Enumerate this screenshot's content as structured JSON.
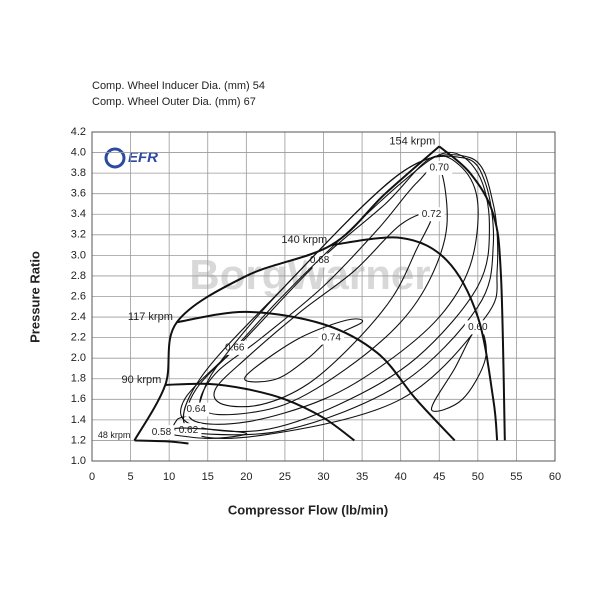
{
  "chart_data": {
    "type": "compressor-map",
    "notes": [
      "Comp. Wheel Inducer Dia. (mm) 54",
      "Comp. Wheel Outer Dia. (mm) 67"
    ],
    "logo": "EFR",
    "watermark": "BorgWarner",
    "x_label": "Compressor Flow (lb/min)",
    "y_label": "Pressure Ratio",
    "xlim": [
      0,
      60
    ],
    "xticks": [
      0,
      5,
      10,
      15,
      20,
      25,
      30,
      35,
      40,
      45,
      50,
      55,
      60
    ],
    "ylim": [
      1.0,
      4.2
    ],
    "yticks": [
      {
        "value": 1.0,
        "label": "1.0"
      },
      1.2,
      1.4,
      1.6,
      1.8,
      {
        "value": 2.0,
        "label": "2.0"
      },
      2.2,
      2.4,
      2.6,
      2.8,
      {
        "value": 3.0,
        "label": "3.0"
      },
      3.2,
      3.4,
      3.6,
      3.8,
      {
        "value": 4.0,
        "label": "4.0"
      },
      4.2
    ],
    "grid": true,
    "color": "#111111",
    "surge_line": {
      "x": [
        5.5,
        9.5,
        11,
        20,
        31,
        38,
        45
      ],
      "y": [
        1.2,
        1.74,
        2.35,
        2.8,
        3.1,
        3.6,
        4.06
      ]
    },
    "speed_lines": [
      {
        "name": "48 krpm",
        "x": [
          5.5,
          10,
          12.5
        ],
        "y": [
          1.2,
          1.19,
          1.17
        ]
      },
      {
        "name": "90 krpm",
        "x": [
          9.5,
          15,
          20,
          25,
          30,
          34
        ],
        "y": [
          1.74,
          1.75,
          1.7,
          1.6,
          1.42,
          1.2
        ]
      },
      {
        "name": "117 krpm",
        "x": [
          11,
          20,
          30,
          37,
          42,
          47
        ],
        "y": [
          2.35,
          2.45,
          2.33,
          2.05,
          1.6,
          1.2
        ]
      },
      {
        "name": "140 krpm",
        "x": [
          31,
          40,
          46,
          50,
          52,
          52.5
        ],
        "y": [
          3.1,
          3.17,
          2.95,
          2.4,
          1.6,
          1.2
        ]
      },
      {
        "name": "154 krpm",
        "x": [
          45,
          49,
          52,
          53,
          53.5
        ],
        "y": [
          4.06,
          3.8,
          3.4,
          2.8,
          1.2
        ]
      }
    ],
    "contours": [
      {
        "name": "0.74",
        "x": [
          31,
          35,
          33,
          27,
          21,
          20,
          24,
          28
        ],
        "y": [
          2.2,
          2.35,
          2.37,
          2.2,
          1.9,
          1.78,
          1.8,
          2.0
        ]
      },
      {
        "name": "0.72",
        "x": [
          44,
          42,
          39,
          34,
          28,
          22,
          17,
          16,
          20,
          27,
          34,
          40
        ],
        "y": [
          3.4,
          3.05,
          2.6,
          2.15,
          1.75,
          1.55,
          1.55,
          1.7,
          2.0,
          2.45,
          2.85,
          3.3
        ]
      },
      {
        "name": "0.70",
        "x": [
          45,
          46,
          44,
          40,
          33,
          25,
          17,
          14,
          16,
          22,
          30,
          37,
          42
        ],
        "y": [
          3.85,
          3.3,
          2.8,
          2.35,
          1.9,
          1.55,
          1.45,
          1.55,
          1.85,
          2.2,
          2.7,
          3.25,
          3.7
        ]
      },
      {
        "name": "0.68",
        "x": [
          29.5,
          38,
          44,
          48,
          50,
          49,
          45,
          38,
          30,
          20,
          13,
          13.5,
          20
        ],
        "y": [
          2.95,
          3.5,
          3.95,
          3.85,
          3.5,
          2.9,
          2.4,
          1.95,
          1.6,
          1.38,
          1.4,
          1.7,
          2.2
        ]
      },
      {
        "name": "0.66",
        "x": [
          18.5,
          12,
          13,
          22,
          32,
          42,
          50,
          51.5,
          50,
          46,
          40,
          30,
          24
        ],
        "y": [
          2.1,
          1.6,
          1.35,
          1.3,
          1.55,
          2.0,
          2.7,
          3.3,
          3.8,
          4.0,
          3.7,
          3.0,
          2.55
        ]
      },
      {
        "name": "0.64",
        "x": [
          13.5,
          11,
          12,
          25,
          40,
          50,
          52,
          51,
          48,
          40,
          25,
          16
        ],
        "y": [
          1.5,
          1.4,
          1.28,
          1.3,
          1.75,
          2.5,
          3.1,
          3.7,
          3.95,
          3.8,
          2.7,
          1.9
        ]
      },
      {
        "name": "0.62",
        "x": [
          12.5,
          22,
          40,
          51,
          52.5,
          52,
          49,
          40,
          25,
          14
        ],
        "y": [
          1.3,
          1.25,
          1.6,
          2.4,
          2.85,
          3.5,
          3.95,
          3.8,
          2.7,
          1.8
        ]
      },
      {
        "name": "0.60",
        "x": [
          50,
          47,
          44,
          48,
          51
        ],
        "y": [
          2.3,
          1.9,
          1.5,
          1.6,
          2.0
        ]
      },
      {
        "name": "0.58",
        "x": [
          9,
          15,
          20,
          12
        ],
        "y": [
          1.28,
          1.22,
          1.27,
          1.32
        ]
      }
    ]
  }
}
